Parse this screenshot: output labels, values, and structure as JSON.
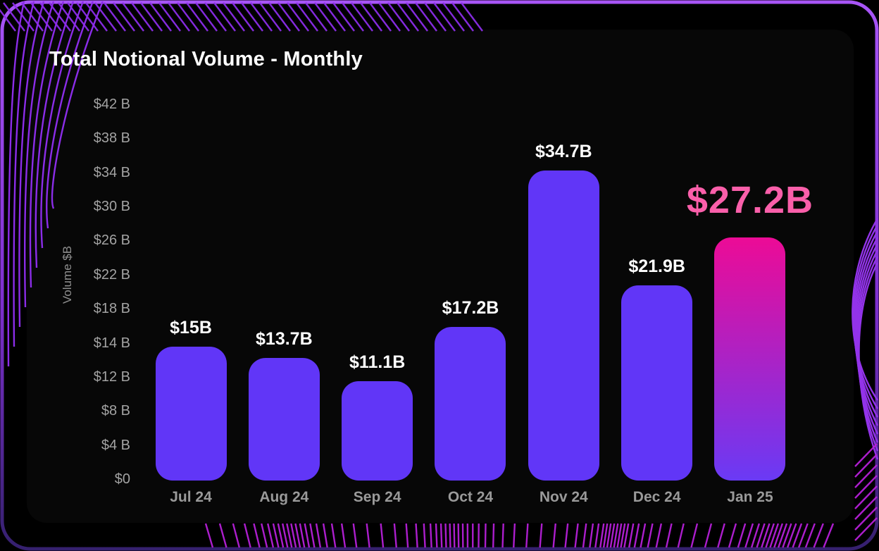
{
  "page": {
    "title": "Total Notional Volume - Monthly"
  },
  "chart_data": {
    "type": "bar",
    "title": "Total Notional Volume - Monthly",
    "xlabel": "",
    "ylabel": "Volume $B",
    "categories": [
      "Jul 24",
      "Aug 24",
      "Sep 24",
      "Oct 24",
      "Nov 24",
      "Dec 24",
      "Jan 25"
    ],
    "values": [
      15,
      13.7,
      11.1,
      17.2,
      34.7,
      21.9,
      27.2
    ],
    "bar_labels": [
      "$15B",
      "$13.7B",
      "$11.1B",
      "$17.2B",
      "$34.7B",
      "$21.9B",
      "$27.2B"
    ],
    "highlight_index": 6,
    "highlight_label": "$27.2B",
    "ytick_labels": [
      "$42 B",
      "$38 B",
      "$34 B",
      "$30 B",
      "$26 B",
      "$22 B",
      "$18 B",
      "$14 B",
      "$12 B",
      "$8 B",
      "$4 B",
      "$0"
    ],
    "ylim": [
      0,
      42
    ],
    "grid": false,
    "legend": null
  },
  "colors": {
    "background": "#000000",
    "bar": "#6136f7",
    "highlight_gradient_top": "#ec0b96",
    "highlight_gradient_bottom": "#6a3af5",
    "highlight_label": "#fa5faa",
    "value_label": "#ffffff",
    "axis_text": "#a3a3a3",
    "title_text": "#ffffff"
  },
  "decor": {
    "frame_top": "#a855f7",
    "frame_mid": "#7e30cf",
    "frame_bottom": "#35206e",
    "hatch_top": "#8b2de8",
    "hatch_bottom": "#b620d8",
    "swirl": "#9333ea"
  }
}
